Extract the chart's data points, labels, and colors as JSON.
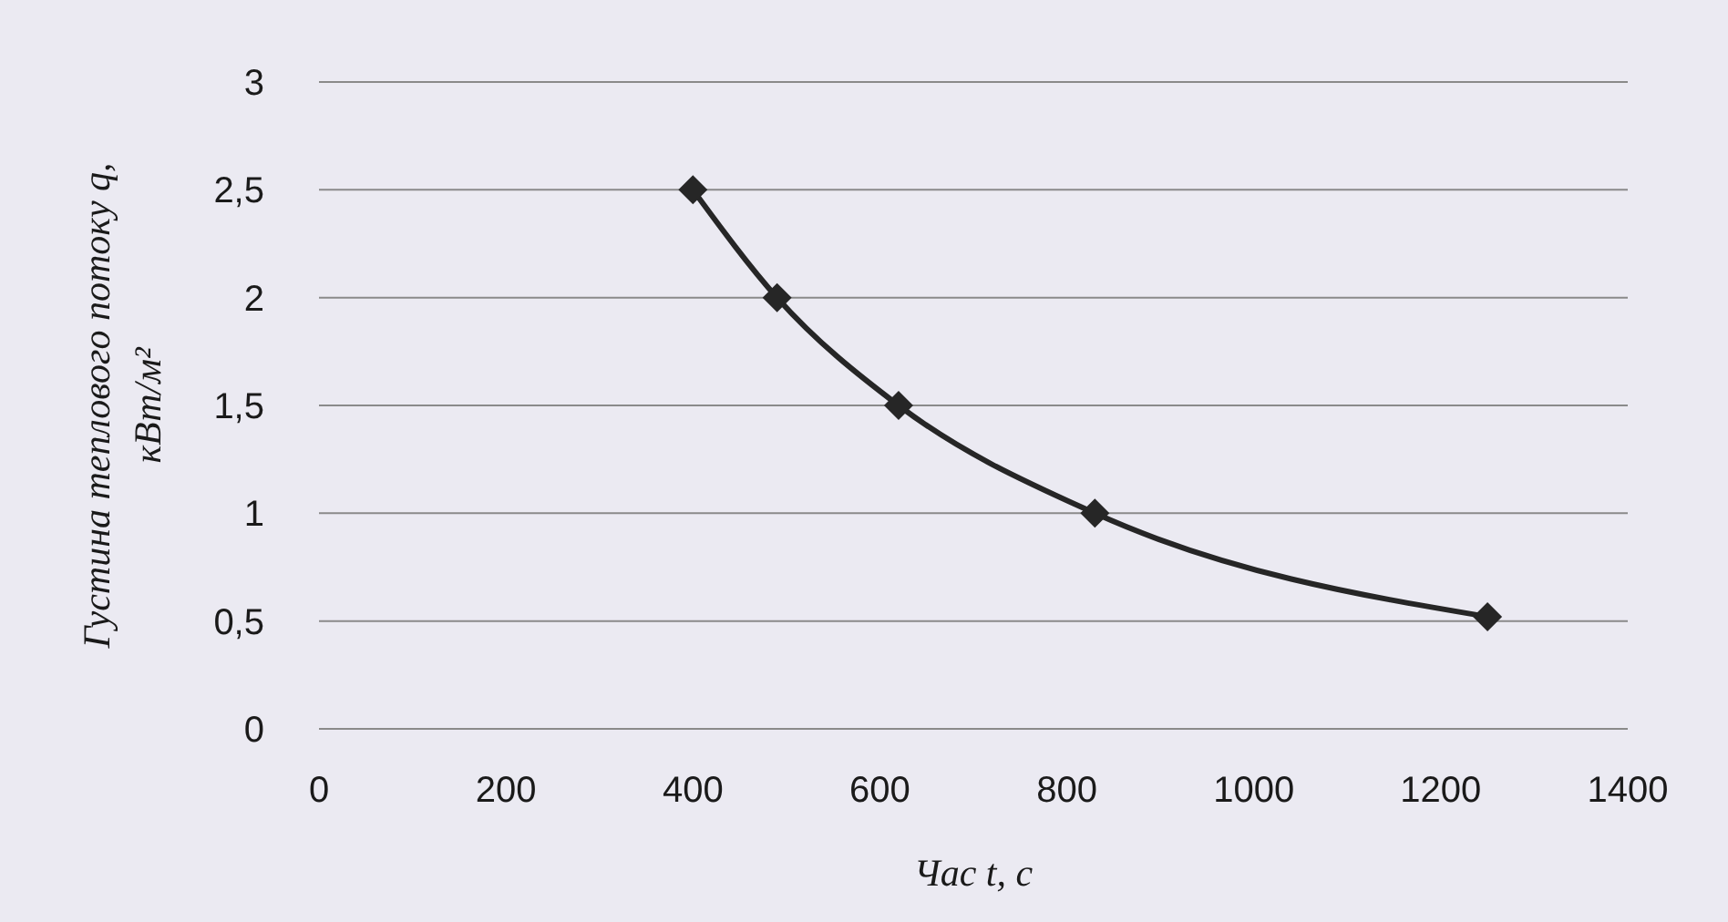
{
  "chart_data": {
    "type": "line",
    "xlabel": "Час t, с",
    "ylabel": "Густина теплового потоку q, кВт/м²",
    "x": [
      400,
      490,
      620,
      830,
      1250
    ],
    "series": [
      {
        "color": "#262626",
        "values": [
          2.5,
          2.0,
          1.5,
          1.0,
          0.52
        ]
      }
    ],
    "xlim": [
      0,
      1400
    ],
    "xticks": [
      0,
      200,
      400,
      600,
      800,
      1000,
      1200,
      1400
    ],
    "ylim": [
      0,
      3
    ],
    "yticks": [
      0,
      {
        "value": 0.5,
        "label": "0,5"
      },
      1,
      {
        "value": 1.5,
        "label": "1,5"
      },
      2,
      {
        "value": 2.5,
        "label": "2,5"
      },
      3
    ],
    "grid": "y",
    "marker": "diamond",
    "line_style": "solid"
  }
}
